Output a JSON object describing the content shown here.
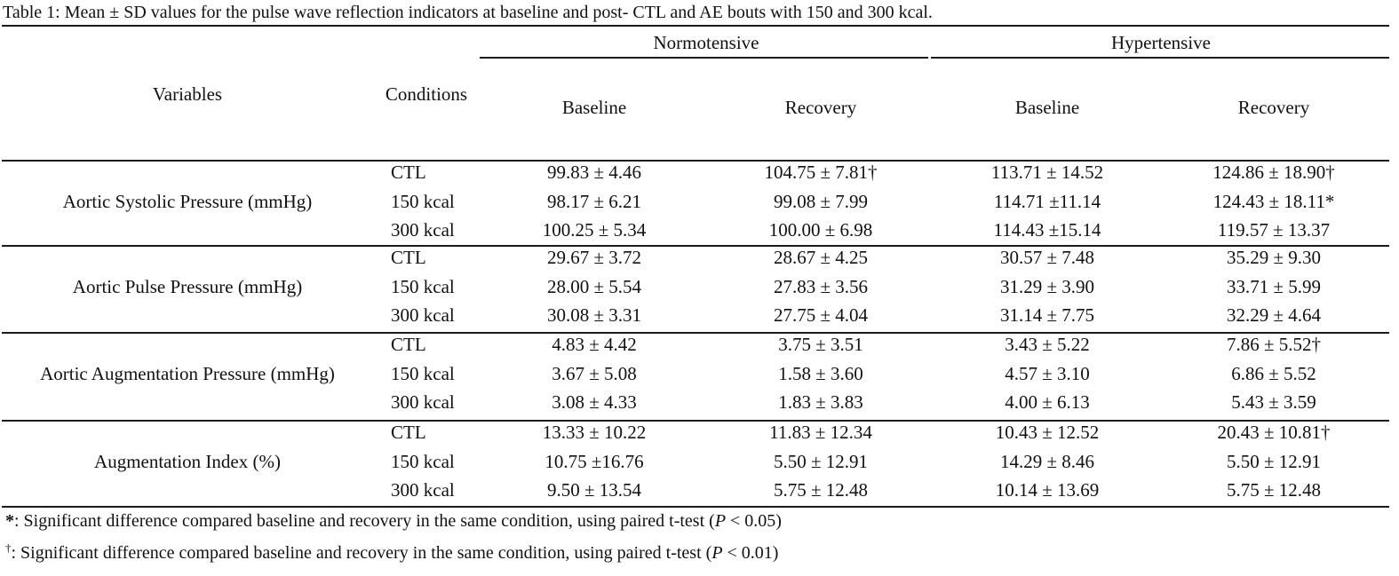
{
  "caption": "Table 1: Mean ± SD values for the pulse wave reflection indicators at baseline and post- CTL and AE bouts with 150 and 300 kcal.",
  "headers": {
    "variables": "Variables",
    "conditions": "Conditions",
    "groups": [
      "Normotensive",
      "Hypertensive"
    ],
    "phases": [
      "Baseline",
      "Recovery",
      "Baseline",
      "Recovery"
    ]
  },
  "rows": [
    {
      "variable": "Aortic Systolic Pressure (mmHg)",
      "conditions": [
        "CTL",
        "150 kcal",
        "300 kcal"
      ],
      "values": [
        [
          "99.83 ± 4.46",
          "104.75 ± 7.81†",
          "113.71 ± 14.52",
          "124.86 ± 18.90†"
        ],
        [
          "98.17 ± 6.21",
          "99.08 ± 7.99",
          "114.71 ±11.14",
          "124.43 ± 18.11*"
        ],
        [
          "100.25 ± 5.34",
          "100.00 ± 6.98",
          "114.43 ±15.14",
          "119.57 ± 13.37"
        ]
      ]
    },
    {
      "variable": "Aortic Pulse Pressure (mmHg)",
      "conditions": [
        "CTL",
        "150 kcal",
        "300 kcal"
      ],
      "values": [
        [
          "29.67 ± 3.72",
          "28.67 ± 4.25",
          "30.57 ± 7.48",
          "35.29 ± 9.30"
        ],
        [
          "28.00 ± 5.54",
          "27.83 ± 3.56",
          "31.29 ± 3.90",
          "33.71 ± 5.99"
        ],
        [
          "30.08 ± 3.31",
          "27.75 ± 4.04",
          "31.14 ± 7.75",
          "32.29 ± 4.64"
        ]
      ]
    },
    {
      "variable": "Aortic Augmentation Pressure (mmHg)",
      "conditions": [
        "CTL",
        "150 kcal",
        "300 kcal"
      ],
      "values": [
        [
          "4.83 ± 4.42",
          "3.75 ± 3.51",
          "3.43 ± 5.22",
          "7.86 ± 5.52†"
        ],
        [
          "3.67 ± 5.08",
          "1.58 ± 3.60",
          "4.57 ± 3.10",
          "6.86 ± 5.52"
        ],
        [
          "3.08 ± 4.33",
          "1.83 ± 3.83",
          "4.00 ± 6.13",
          "5.43 ± 3.59"
        ]
      ]
    },
    {
      "variable": "Augmentation Index (%)",
      "conditions": [
        "CTL",
        "150 kcal",
        "300 kcal"
      ],
      "values": [
        [
          "13.33 ± 10.22",
          "11.83 ± 12.34",
          "10.43 ± 12.52",
          "20.43 ± 10.81†"
        ],
        [
          "10.75 ±16.76",
          "5.50 ± 12.91",
          "14.29 ± 8.46",
          "5.50 ± 12.91"
        ],
        [
          "9.50 ± 13.54",
          "5.75 ± 12.48",
          "10.14 ± 13.69",
          "5.75 ± 12.48"
        ]
      ]
    }
  ],
  "footnotes": [
    {
      "mark": "*",
      "text_before": ": Significant difference compared baseline and recovery in the same condition, using paired t-test (",
      "p": "P",
      "text_after": " < 0.05)"
    },
    {
      "mark": "†",
      "text_before": ": Significant difference compared baseline and recovery in the same condition, using paired t-test (",
      "p": "P",
      "text_after": " < 0.01)"
    }
  ]
}
